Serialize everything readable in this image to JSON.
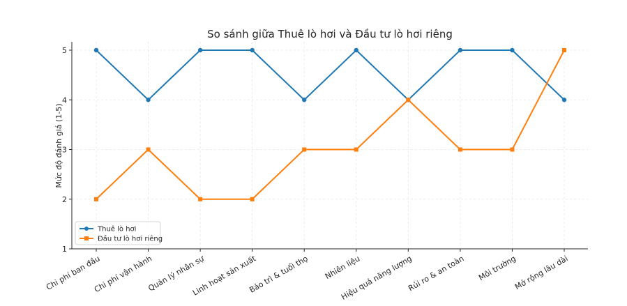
{
  "chart_data": {
    "type": "line",
    "title": "So sánh giữa Thuê lò hơi và Đầu tư lò hơi riêng",
    "xlabel": "",
    "ylabel": "Mức độ đánh giá (1-5)",
    "categories": [
      "Chi phí ban đầu",
      "Chi phí vận hành",
      "Quản lý nhân sự",
      "Linh hoạt sản xuất",
      "Bảo trì & tuổi thọ",
      "Nhiên liệu",
      "Hiệu quả năng lượng",
      "Rủi ro & an toàn",
      "Môi trường",
      "Mở rộng lâu dài"
    ],
    "ylim": [
      1,
      5
    ],
    "yticks": [
      1,
      2,
      3,
      4,
      5
    ],
    "grid": true,
    "legend_position": "lower-left",
    "series": [
      {
        "name": "Thuê lò hơi",
        "color": "#1f77b4",
        "marker": "circle",
        "values": [
          5,
          4,
          5,
          5,
          4,
          5,
          4,
          5,
          5,
          4
        ]
      },
      {
        "name": "Đầu tư lò hơi riêng",
        "color": "#ff7f0e",
        "marker": "square",
        "values": [
          2,
          3,
          2,
          2,
          3,
          3,
          4,
          3,
          3,
          5
        ]
      }
    ]
  }
}
